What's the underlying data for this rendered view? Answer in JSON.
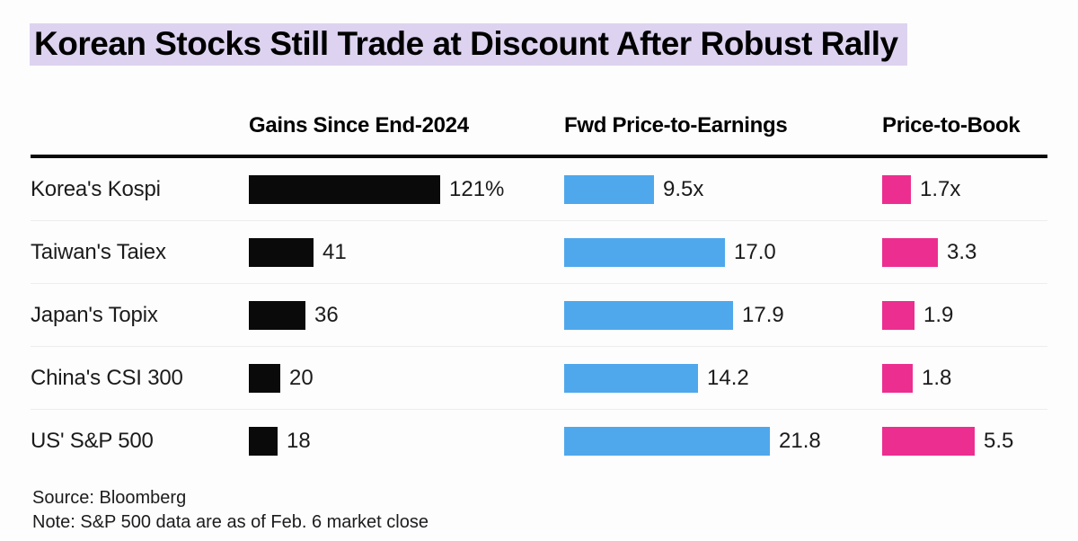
{
  "title": "Korean Stocks Still Trade at Discount After Robust Rally",
  "columns": [
    "Gains Since End-2024",
    "Fwd Price-to-Earnings",
    "Price-to-Book"
  ],
  "rows": [
    {
      "label": "Korea's Kospi",
      "gains": {
        "value": 121,
        "display": "121%"
      },
      "pe": {
        "value": 9.5,
        "display": "9.5x"
      },
      "pb": {
        "value": 1.7,
        "display": "1.7x"
      }
    },
    {
      "label": "Taiwan's Taiex",
      "gains": {
        "value": 41,
        "display": "41"
      },
      "pe": {
        "value": 17.0,
        "display": "17.0"
      },
      "pb": {
        "value": 3.3,
        "display": "3.3"
      }
    },
    {
      "label": "Japan's Topix",
      "gains": {
        "value": 36,
        "display": "36"
      },
      "pe": {
        "value": 17.9,
        "display": "17.9"
      },
      "pb": {
        "value": 1.9,
        "display": "1.9"
      }
    },
    {
      "label": "China's CSI 300",
      "gains": {
        "value": 20,
        "display": "20"
      },
      "pe": {
        "value": 14.2,
        "display": "14.2"
      },
      "pb": {
        "value": 1.8,
        "display": "1.8"
      }
    },
    {
      "label": "US' S&P 500",
      "gains": {
        "value": 18,
        "display": "18"
      },
      "pe": {
        "value": 21.8,
        "display": "21.8"
      },
      "pb": {
        "value": 5.5,
        "display": "5.5"
      }
    }
  ],
  "footer": {
    "source": "Source: Bloomberg",
    "note": "Note: S&P 500 data are as of Feb. 6 market close"
  },
  "colors": {
    "gains_bar": "#0A0A0A",
    "pe_bar": "#4FA8EC",
    "pb_bar": "#EC2E90",
    "title_highlight": "#DDD3F0",
    "separator": "#EDEDED",
    "header_rule": "#0A0A0A"
  },
  "chart_data": {
    "type": "bar",
    "orientation": "horizontal",
    "title": "Korean Stocks Still Trade at Discount After Robust Rally",
    "categories": [
      "Korea's Kospi",
      "Taiwan's Taiex",
      "Japan's Topix",
      "China's CSI 300",
      "US' S&P 500"
    ],
    "series": [
      {
        "name": "Gains Since End-2024",
        "unit": "%",
        "color": "#0A0A0A",
        "values": [
          121,
          41,
          36,
          20,
          18
        ],
        "value_labels": [
          "121%",
          "41",
          "36",
          "20",
          "18"
        ]
      },
      {
        "name": "Fwd Price-to-Earnings",
        "unit": "x",
        "color": "#4FA8EC",
        "values": [
          9.5,
          17.0,
          17.9,
          14.2,
          21.8
        ],
        "value_labels": [
          "9.5x",
          "17.0",
          "17.9",
          "14.2",
          "21.8"
        ]
      },
      {
        "name": "Price-to-Book",
        "unit": "x",
        "color": "#EC2E90",
        "values": [
          1.7,
          3.3,
          1.9,
          1.8,
          5.5
        ],
        "value_labels": [
          "1.7x",
          "3.3",
          "1.9",
          "1.8",
          "5.5"
        ]
      }
    ],
    "legend_position": "column-headers",
    "grid": false,
    "source": "Source: Bloomberg",
    "note": "Note: S&P 500 data are as of Feb. 6 market close"
  }
}
